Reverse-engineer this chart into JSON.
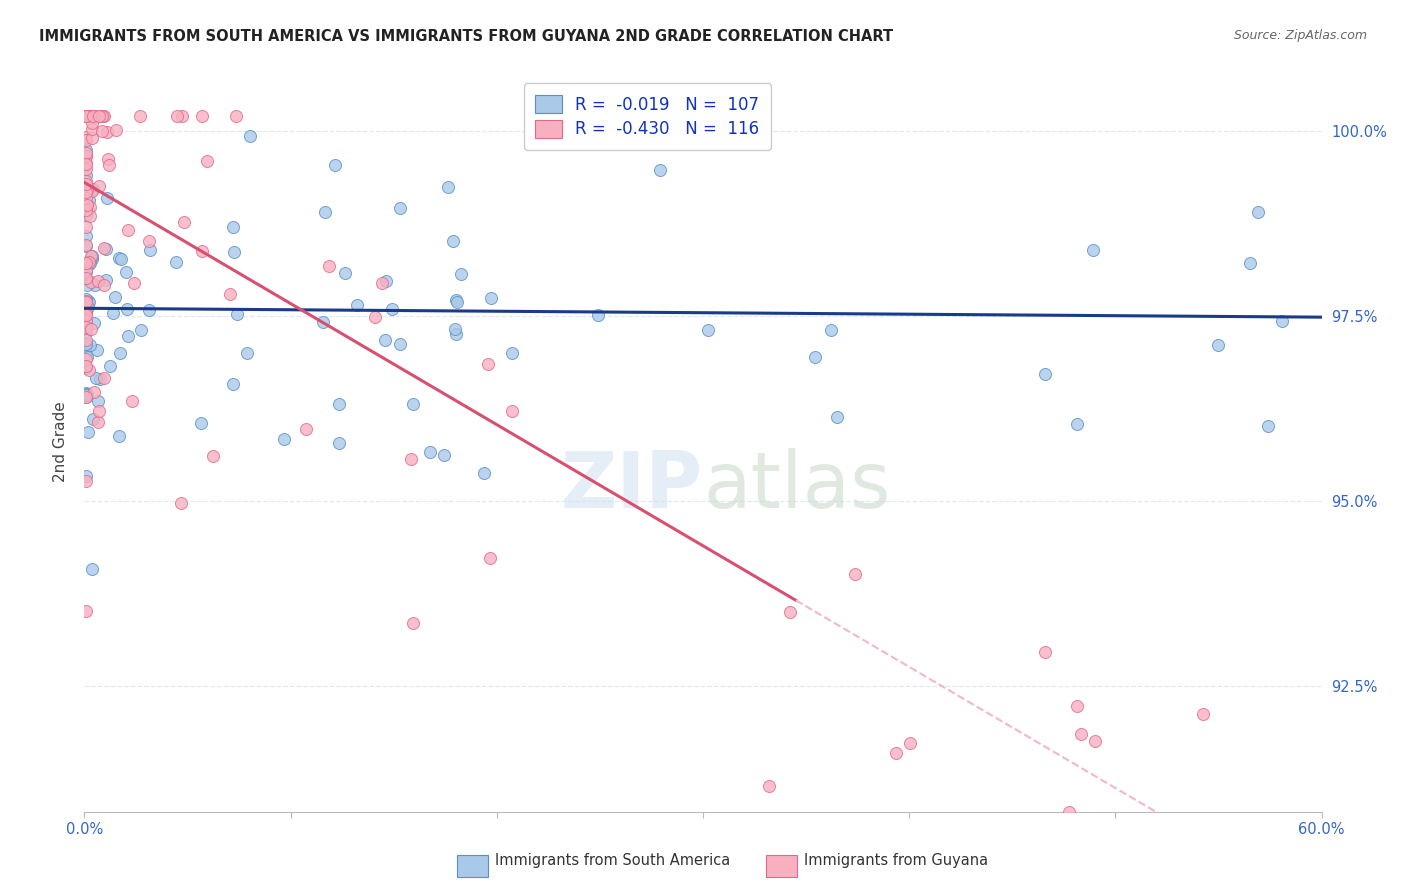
{
  "title": "IMMIGRANTS FROM SOUTH AMERICA VS IMMIGRANTS FROM GUYANA 2ND GRADE CORRELATION CHART",
  "source": "Source: ZipAtlas.com",
  "ylabel": "2nd Grade",
  "yaxis_labels": [
    "100.0%",
    "97.5%",
    "95.0%",
    "92.5%"
  ],
  "yaxis_values": [
    1.0,
    0.975,
    0.95,
    0.925
  ],
  "xmin": 0.0,
  "xmax": 0.6,
  "ymin": 0.908,
  "ymax": 1.008,
  "legend_blue_r": "-0.019",
  "legend_blue_n": "107",
  "legend_pink_r": "-0.430",
  "legend_pink_n": "116",
  "blue_color": "#aac8e8",
  "blue_edge_color": "#5590c8",
  "pink_color": "#f8b0c0",
  "pink_edge_color": "#e06888",
  "blue_line_color": "#1a3a8a",
  "pink_line_color": "#d85070",
  "dashed_line_color": "#f0b8c8",
  "watermark_zip_color": "#d0dff0",
  "watermark_atlas_color": "#c8d8c8",
  "grid_color": "#dde8f0",
  "spine_color": "#bbbbbb",
  "tick_label_color": "#3366cc",
  "title_color": "#222222",
  "source_color": "#666666",
  "ylabel_color": "#444444",
  "legend_text_color": "#1133bb",
  "bottom_legend_color": "#333333",
  "blue_line_y0": 0.976,
  "blue_line_y1": 0.9748,
  "pink_line_y0": 0.993,
  "pink_line_x_solid_end": 0.345,
  "pink_line_x_dash_end": 0.6,
  "pink_slope": -0.1636
}
